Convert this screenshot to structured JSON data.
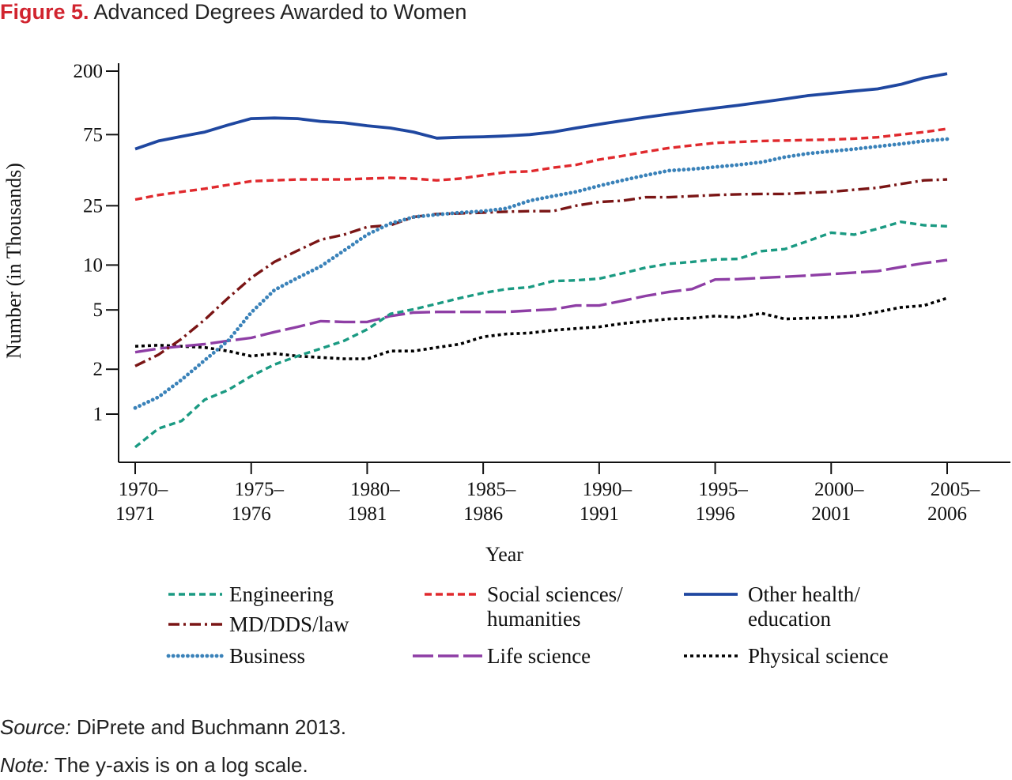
{
  "figure": {
    "label": "Figure 5.",
    "title": "Advanced Degrees Awarded to Women",
    "source_label": "Source:",
    "source_text": "DiPrete and Buchmann 2013.",
    "note_label": "Note:",
    "note_text": "The y-axis is on a log scale."
  },
  "colors": {
    "title_accent": "#d1242f",
    "engineering": "#1a9a82",
    "md_dds_law": "#7a1515",
    "business": "#3a82b9",
    "social_sciences": "#e0292d",
    "life_science": "#8e3ea5",
    "other_health": "#1f47a0",
    "physical_science": "#000000"
  },
  "chart_data": {
    "type": "line",
    "title": "Advanced Degrees Awarded to Women",
    "xlabel": "Year",
    "ylabel": "Number (in Thousands)",
    "y_scale": "log",
    "grid": false,
    "legend_placement": "bottom",
    "x_tick_labels": [
      {
        "year": 1970,
        "line1": "1970–",
        "line2": "1971"
      },
      {
        "year": 1975,
        "line1": "1975–",
        "line2": "1976"
      },
      {
        "year": 1980,
        "line1": "1980–",
        "line2": "1981"
      },
      {
        "year": 1985,
        "line1": "1985–",
        "line2": "1986"
      },
      {
        "year": 1990,
        "line1": "1990–",
        "line2": "1991"
      },
      {
        "year": 1995,
        "line1": "1995–",
        "line2": "1996"
      },
      {
        "year": 2000,
        "line1": "2000–",
        "line2": "2001"
      },
      {
        "year": 2005,
        "line1": "2005–",
        "line2": "2006"
      }
    ],
    "y_ticks": [
      1,
      2,
      5,
      10,
      25,
      75,
      200
    ],
    "x": [
      1970,
      1971,
      1972,
      1973,
      1974,
      1975,
      1976,
      1977,
      1978,
      1979,
      1980,
      1981,
      1982,
      1983,
      1984,
      1985,
      1986,
      1987,
      1988,
      1989,
      1990,
      1991,
      1992,
      1993,
      1994,
      1995,
      1996,
      1997,
      1998,
      1999,
      2000,
      2001,
      2002,
      2003,
      2004,
      2005
    ],
    "series": [
      {
        "key": "engineering",
        "name": "Engineering",
        "dash": "8,5",
        "width": 3.4,
        "linecap": "butt",
        "values": [
          0.6,
          0.8,
          0.9,
          1.25,
          1.45,
          1.8,
          2.15,
          2.45,
          2.75,
          3.1,
          3.7,
          4.7,
          5.05,
          5.5,
          6.0,
          6.5,
          6.9,
          7.1,
          7.8,
          7.9,
          8.1,
          8.8,
          9.6,
          10.2,
          10.5,
          10.9,
          11.0,
          12.4,
          12.8,
          14.5,
          16.5,
          16.0,
          17.5,
          19.5,
          18.5,
          18.2
        ]
      },
      {
        "key": "md_dds_law",
        "name": "MD/DDS/law",
        "dash": "14,5,3,5",
        "width": 3.4,
        "linecap": "butt",
        "values": [
          2.1,
          2.5,
          3.2,
          4.3,
          6.0,
          8.2,
          10.5,
          12.5,
          14.8,
          16.0,
          18.0,
          18.5,
          21.0,
          22.0,
          22.2,
          22.5,
          22.8,
          23.0,
          23.0,
          25.0,
          26.5,
          27.0,
          28.5,
          28.5,
          29.0,
          29.5,
          29.8,
          30.0,
          30.0,
          30.5,
          31.0,
          32.0,
          33.0,
          35.0,
          37.0,
          37.5
        ]
      },
      {
        "key": "business",
        "name": "Business",
        "dash": "0.1,6",
        "width": 4.8,
        "linecap": "round",
        "values": [
          1.1,
          1.3,
          1.7,
          2.3,
          3.1,
          4.8,
          6.8,
          8.2,
          9.8,
          12.5,
          16.0,
          19.0,
          21.0,
          21.8,
          22.5,
          23.0,
          24.0,
          27.0,
          29.0,
          31.0,
          34.0,
          37.0,
          40.0,
          43.0,
          44.0,
          45.5,
          47.0,
          49.0,
          53.0,
          56.0,
          58.0,
          60.0,
          62.5,
          65.0,
          68.0,
          70.0
        ]
      },
      {
        "key": "social_sciences",
        "name": "Social sciences/ humanities",
        "name_line1": "Social sciences/",
        "name_line2": "humanities",
        "dash": "9,5",
        "width": 3.4,
        "linecap": "butt",
        "values": [
          27.5,
          29.5,
          31.0,
          32.5,
          34.5,
          36.5,
          37.0,
          37.5,
          37.5,
          37.5,
          38.0,
          38.5,
          38.0,
          37.0,
          38.0,
          40.0,
          42.0,
          42.5,
          45.0,
          47.0,
          51.0,
          54.0,
          57.5,
          61.0,
          63.5,
          66.0,
          67.0,
          68.0,
          68.5,
          69.0,
          69.5,
          70.5,
          72.0,
          75.0,
          78.0,
          82.0
        ]
      },
      {
        "key": "life_science",
        "name": "Life science",
        "dash": "26,6",
        "width": 3.4,
        "linecap": "butt",
        "values": [
          2.6,
          2.75,
          2.85,
          2.95,
          3.1,
          3.25,
          3.55,
          3.85,
          4.2,
          4.15,
          4.15,
          4.55,
          4.8,
          4.85,
          4.85,
          4.85,
          4.85,
          4.95,
          5.05,
          5.35,
          5.35,
          5.75,
          6.2,
          6.6,
          6.9,
          8.0,
          8.05,
          8.2,
          8.35,
          8.5,
          8.7,
          8.9,
          9.1,
          9.7,
          10.3,
          10.8
        ]
      },
      {
        "key": "physical_science",
        "name": "Physical science",
        "dash": "4,4",
        "width": 3.6,
        "linecap": "butt",
        "values": [
          2.85,
          2.9,
          2.85,
          2.8,
          2.65,
          2.45,
          2.55,
          2.45,
          2.4,
          2.35,
          2.35,
          2.65,
          2.65,
          2.8,
          2.95,
          3.3,
          3.45,
          3.5,
          3.65,
          3.75,
          3.85,
          4.05,
          4.2,
          4.35,
          4.4,
          4.55,
          4.45,
          4.75,
          4.35,
          4.4,
          4.45,
          4.55,
          4.85,
          5.2,
          5.35,
          6.0
        ]
      },
      {
        "key": "other_health",
        "name": "Other health/ education",
        "name_line1": "Other health/",
        "name_line2": "education",
        "dash": "",
        "width": 3.8,
        "linecap": "butt",
        "values": [
          60.0,
          68.0,
          73.0,
          78.0,
          87.0,
          96.0,
          97.0,
          96.0,
          92.0,
          90.0,
          86.0,
          83.0,
          78.0,
          71.0,
          72.0,
          72.5,
          73.5,
          75.0,
          78.0,
          83.0,
          88.0,
          93.0,
          98.0,
          103.0,
          108.0,
          113.0,
          118.0,
          124.0,
          130.0,
          137.0,
          142.0,
          147.0,
          152.0,
          163.0,
          180.0,
          192.0
        ]
      }
    ]
  }
}
